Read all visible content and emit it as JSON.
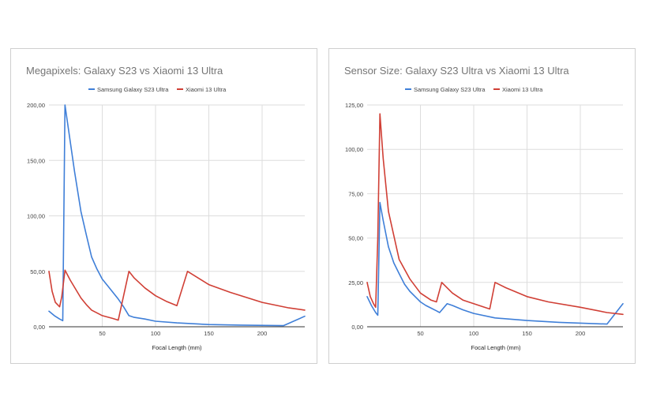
{
  "colors": {
    "samsung": "#3f7fd8",
    "xiaomi": "#d03f35",
    "grid": "#dddddd",
    "axis": "#333333"
  },
  "chart_data": [
    {
      "type": "line",
      "title": "Megapixels: Galaxy S23 vs Xiaomi 13 Ultra",
      "xlabel": "Focal Length (mm)",
      "ylabel": "",
      "xlim": [
        0,
        240
      ],
      "ylim": [
        0,
        200
      ],
      "x_ticks": [
        50,
        100,
        150,
        200
      ],
      "x_tick_labels": [
        "50",
        "100",
        "150",
        "200"
      ],
      "y_ticks": [
        0,
        50,
        100,
        150,
        200
      ],
      "y_tick_labels": [
        "0,00",
        "50,00",
        "100,00",
        "150,00",
        "200,00"
      ],
      "series": [
        {
          "name": "Samsung Galaxy S23 Ultra",
          "color_key": "samsung",
          "x": [
            0,
            5,
            10,
            13,
            15,
            24,
            30,
            35,
            40,
            45,
            50,
            55,
            60,
            65,
            70,
            75,
            80,
            90,
            100,
            120,
            150,
            180,
            220,
            240
          ],
          "y": [
            14,
            10,
            7,
            5.5,
            200,
            140,
            104,
            83,
            63,
            52,
            43,
            37,
            31,
            25,
            18,
            10,
            8.5,
            7,
            5,
            3.5,
            2,
            1.5,
            1,
            9.5
          ]
        },
        {
          "name": "Xiaomi 13 Ultra",
          "color_key": "xiaomi",
          "x": [
            0,
            3,
            6,
            10,
            12,
            15,
            20,
            30,
            35,
            40,
            50,
            60,
            65,
            75,
            80,
            90,
            100,
            110,
            120,
            130,
            150,
            170,
            200,
            225,
            240
          ],
          "y": [
            50,
            32,
            22,
            18,
            27,
            51,
            42,
            26,
            20,
            15,
            10,
            7.5,
            6,
            50,
            44,
            35,
            28,
            23,
            19,
            50,
            38,
            31,
            22,
            17,
            15
          ]
        }
      ],
      "legend": "top"
    },
    {
      "type": "line",
      "title": "Sensor Size: Galaxy S23 Ultra vs Xiaomi 13 Ultra",
      "xlabel": "Focal Length (mm)",
      "ylabel": "",
      "xlim": [
        0,
        240
      ],
      "ylim": [
        0,
        125
      ],
      "x_ticks": [
        50,
        100,
        150,
        200
      ],
      "x_tick_labels": [
        "50",
        "100",
        "150",
        "200"
      ],
      "y_ticks": [
        0,
        25,
        50,
        75,
        100,
        125
      ],
      "y_tick_labels": [
        "0,00",
        "25,00",
        "50,00",
        "75,00",
        "100,00",
        "125,00"
      ],
      "series": [
        {
          "name": "Samsung Galaxy S23 Ultra",
          "color_key": "samsung",
          "x": [
            0,
            4,
            8,
            10,
            12,
            15,
            20,
            25,
            30,
            35,
            40,
            45,
            50,
            55,
            60,
            65,
            68,
            75,
            80,
            90,
            100,
            120,
            150,
            180,
            225,
            240
          ],
          "y": [
            17,
            12,
            8,
            6.5,
            70,
            60,
            45,
            36,
            30,
            24,
            20,
            17,
            14,
            12,
            10.5,
            9,
            8,
            13,
            12,
            9.5,
            7.5,
            5,
            3.5,
            2.5,
            1.5,
            13
          ]
        },
        {
          "name": "Xiaomi 13 Ultra",
          "color_key": "xiaomi",
          "x": [
            0,
            3,
            6,
            8,
            10,
            12,
            15,
            20,
            30,
            40,
            50,
            60,
            65,
            70,
            80,
            90,
            100,
            110,
            115,
            120,
            130,
            150,
            170,
            200,
            225,
            240
          ],
          "y": [
            25,
            17,
            13,
            11,
            50,
            120,
            95,
            65,
            38,
            27,
            19,
            15,
            14,
            25,
            19,
            15,
            13,
            11,
            10,
            25,
            22,
            17,
            14,
            11,
            8,
            7
          ]
        }
      ],
      "legend": "top"
    }
  ]
}
